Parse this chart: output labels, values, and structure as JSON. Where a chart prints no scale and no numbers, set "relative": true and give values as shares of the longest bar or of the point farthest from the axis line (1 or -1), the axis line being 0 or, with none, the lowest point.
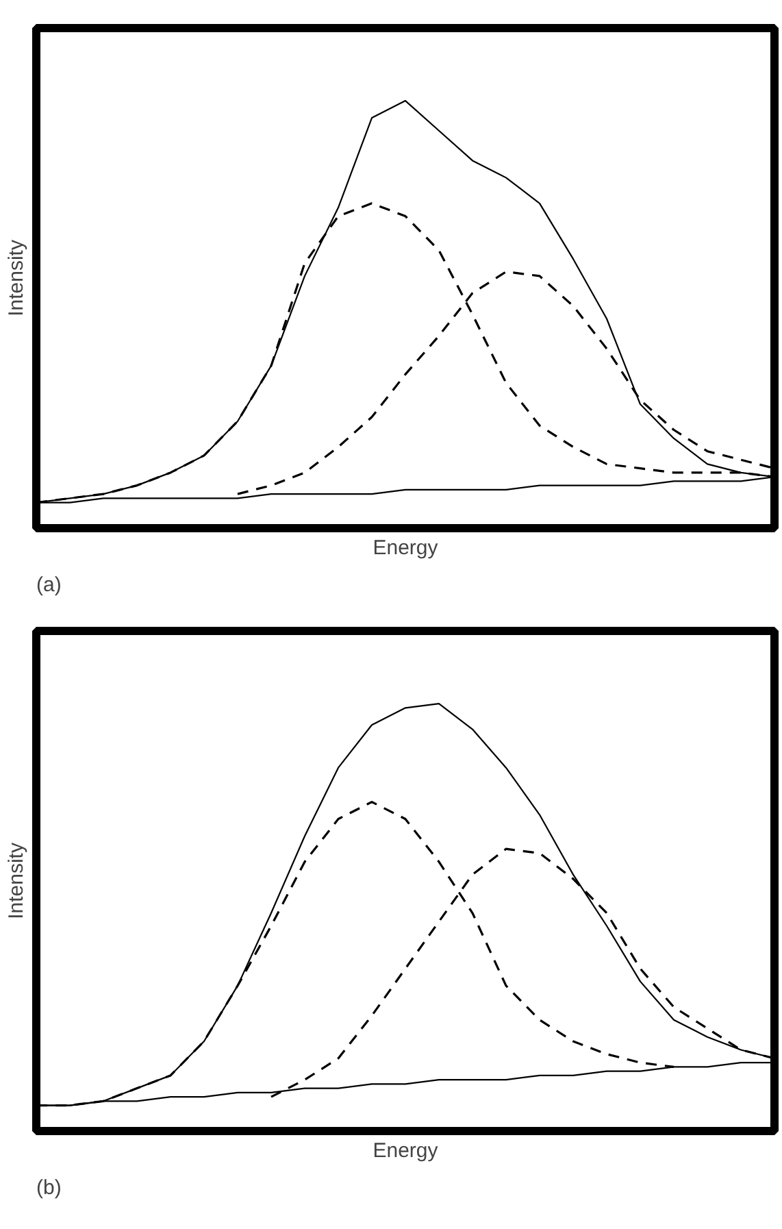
{
  "chart_data": [
    {
      "type": "line",
      "relative": true,
      "xlabel": "Energy",
      "ylabel": "Intensity",
      "annotations": [
        "(a)"
      ],
      "categories": [
        null,
        null,
        null,
        null,
        null,
        null,
        null,
        null,
        null,
        null,
        null,
        null,
        null,
        null,
        null,
        null,
        null,
        null,
        null,
        null,
        null,
        null,
        null
      ],
      "series": [
        {
          "color": "#000000",
          "line_style": "solid",
          "values": [
            0.06,
            0.07,
            0.08,
            0.1,
            0.13,
            0.17,
            0.25,
            0.38,
            0.59,
            0.75,
            0.96,
            1.0,
            0.93,
            0.86,
            0.82,
            0.76,
            0.63,
            0.49,
            0.29,
            0.21,
            0.15,
            0.13,
            0.12
          ]
        },
        {
          "color": "#000000",
          "line_style": "dashed",
          "values": [
            0.06,
            0.07,
            0.08,
            0.1,
            0.13,
            0.17,
            0.25,
            0.38,
            0.62,
            0.73,
            0.76,
            0.73,
            0.65,
            0.5,
            0.34,
            0.24,
            0.19,
            0.15,
            0.14,
            0.13,
            0.13,
            0.13,
            0.12
          ]
        },
        {
          "color": "#000000",
          "line_style": "dashed",
          "values": [
            null,
            null,
            null,
            null,
            null,
            null,
            0.08,
            0.1,
            0.13,
            0.19,
            0.26,
            0.36,
            0.45,
            0.55,
            0.6,
            0.59,
            0.52,
            0.42,
            0.3,
            0.23,
            0.18,
            0.16,
            0.14
          ]
        },
        {
          "color": "#000000",
          "line_style": "solid",
          "values": [
            0.06,
            0.06,
            0.07,
            0.07,
            0.07,
            0.07,
            0.07,
            0.08,
            0.08,
            0.08,
            0.08,
            0.09,
            0.09,
            0.09,
            0.09,
            0.1,
            0.1,
            0.1,
            0.1,
            0.11,
            0.11,
            0.11,
            0.12
          ]
        }
      ]
    },
    {
      "type": "line",
      "relative": true,
      "xlabel": "Energy",
      "ylabel": "Intensity",
      "annotations": [
        "(b)"
      ],
      "categories": [
        null,
        null,
        null,
        null,
        null,
        null,
        null,
        null,
        null,
        null,
        null,
        null,
        null,
        null,
        null,
        null,
        null,
        null,
        null,
        null,
        null,
        null,
        null
      ],
      "series": [
        {
          "color": "#000000",
          "line_style": "solid",
          "values": [
            0.06,
            0.06,
            0.07,
            0.1,
            0.13,
            0.21,
            0.34,
            0.51,
            0.69,
            0.85,
            0.95,
            0.99,
            1.0,
            0.94,
            0.85,
            0.74,
            0.6,
            0.48,
            0.35,
            0.26,
            0.22,
            0.19,
            0.17
          ]
        },
        {
          "color": "#000000",
          "line_style": "dashed",
          "values": [
            0.06,
            0.06,
            0.07,
            0.1,
            0.13,
            0.21,
            0.34,
            0.48,
            0.63,
            0.73,
            0.77,
            0.73,
            0.63,
            0.51,
            0.34,
            0.26,
            0.21,
            0.18,
            0.16,
            0.15,
            null,
            null,
            null
          ]
        },
        {
          "color": "#000000",
          "line_style": "dashed",
          "values": [
            null,
            null,
            null,
            null,
            null,
            null,
            null,
            0.08,
            0.12,
            0.17,
            0.27,
            0.38,
            0.49,
            0.6,
            0.66,
            0.65,
            0.59,
            0.51,
            0.38,
            0.29,
            0.24,
            0.19,
            0.17
          ]
        },
        {
          "color": "#000000",
          "line_style": "solid",
          "values": [
            0.06,
            0.06,
            0.07,
            0.07,
            0.08,
            0.08,
            0.09,
            0.09,
            0.1,
            0.1,
            0.11,
            0.11,
            0.12,
            0.12,
            0.12,
            0.13,
            0.13,
            0.14,
            0.14,
            0.15,
            0.15,
            0.16,
            0.16
          ]
        }
      ]
    }
  ]
}
